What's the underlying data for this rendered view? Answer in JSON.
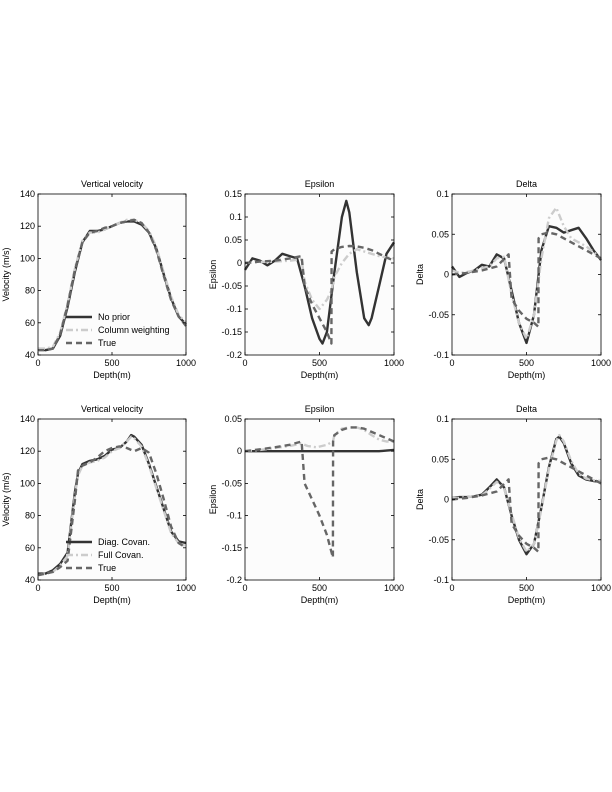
{
  "chart_data": [
    {
      "type": "line",
      "title": "Vertical velocity",
      "xlabel": "Depth(m)",
      "ylabel": "Velocity (m/s)",
      "xlim": [
        0,
        1000
      ],
      "ylim": [
        40,
        140
      ],
      "xticks": [
        0,
        500,
        1000
      ],
      "yticks": [
        40,
        60,
        80,
        100,
        120,
        140
      ],
      "ytick_labels": [
        "40",
        "60",
        "80",
        "100",
        "120",
        "140"
      ],
      "legend": "bottom-left",
      "series": [
        {
          "name": "No prior",
          "style": "solid",
          "color": "#333333",
          "x": [
            0,
            50,
            100,
            150,
            200,
            250,
            300,
            350,
            400,
            450,
            500,
            550,
            600,
            650,
            700,
            750,
            800,
            850,
            900,
            950,
            1000
          ],
          "y": [
            44,
            43,
            44,
            52,
            70,
            92,
            110,
            117,
            117,
            118,
            120,
            122,
            123,
            123,
            121,
            116,
            106,
            90,
            75,
            64,
            59
          ]
        },
        {
          "name": "Column weighting",
          "style": "dashdot",
          "color": "#cccccc",
          "x": [
            0,
            50,
            100,
            150,
            200,
            250,
            300,
            350,
            400,
            450,
            500,
            550,
            600,
            650,
            700,
            750,
            800,
            850,
            900,
            950,
            1000
          ],
          "y": [
            44,
            44,
            45,
            54,
            72,
            94,
            111,
            116,
            116,
            118,
            120,
            122,
            124,
            124,
            122,
            117,
            107,
            91,
            76,
            65,
            60
          ]
        },
        {
          "name": "True",
          "style": "dashed",
          "color": "#666666",
          "x": [
            0,
            50,
            100,
            150,
            200,
            250,
            300,
            350,
            400,
            450,
            500,
            550,
            600,
            650,
            700,
            750,
            800,
            850,
            900,
            950,
            1000
          ],
          "y": [
            43,
            43,
            44,
            53,
            71,
            93,
            110,
            116,
            117,
            119,
            120,
            122,
            123,
            124,
            122,
            116,
            105,
            89,
            74,
            64,
            58
          ]
        }
      ]
    },
    {
      "type": "line",
      "title": "Epsilon",
      "xlabel": "Depth(m)",
      "ylabel": "Epsilon",
      "xlim": [
        0,
        1000
      ],
      "ylim": [
        -0.2,
        0.15
      ],
      "xticks": [
        0,
        500,
        1000
      ],
      "yticks": [
        -0.2,
        -0.15,
        -0.1,
        -0.05,
        0,
        0.05,
        0.1,
        0.15
      ],
      "ytick_labels": [
        "-0.2",
        "-0.15",
        "-0.1",
        "-0.05",
        "0",
        "0.05",
        "0.1",
        "0.15"
      ],
      "series": [
        {
          "style": "solid",
          "color": "#333333",
          "x": [
            0,
            50,
            100,
            150,
            200,
            250,
            300,
            350,
            400,
            450,
            500,
            520,
            550,
            600,
            650,
            680,
            700,
            750,
            800,
            830,
            850,
            900,
            950,
            1000
          ],
          "y": [
            -0.015,
            0.01,
            0.005,
            -0.005,
            0.005,
            0.02,
            0.015,
            0.01,
            -0.05,
            -0.12,
            -0.165,
            -0.175,
            -0.15,
            -0.02,
            0.1,
            0.135,
            0.11,
            -0.02,
            -0.12,
            -0.135,
            -0.12,
            -0.05,
            0.02,
            0.045
          ]
        },
        {
          "style": "dashdot",
          "color": "#cccccc",
          "x": [
            0,
            100,
            200,
            300,
            380,
            400,
            450,
            500,
            550,
            580,
            600,
            650,
            700,
            750,
            800,
            850,
            900,
            950,
            1000
          ],
          "y": [
            0,
            0.002,
            0.003,
            0.005,
            0.008,
            -0.04,
            -0.08,
            -0.1,
            -0.08,
            -0.06,
            -0.03,
            0,
            0.02,
            0.03,
            0.025,
            0.02,
            0.015,
            0.012,
            0.01
          ]
        },
        {
          "style": "dashed",
          "color": "#666666",
          "x": [
            0,
            100,
            200,
            300,
            380,
            400,
            450,
            500,
            550,
            580,
            581,
            600,
            650,
            700,
            750,
            800,
            850,
            900,
            950,
            1000
          ],
          "y": [
            0,
            0.003,
            0.005,
            0.01,
            0.015,
            -0.05,
            -0.09,
            -0.12,
            -0.15,
            -0.175,
            0.025,
            0.03,
            0.035,
            0.037,
            0.036,
            0.033,
            0.028,
            0.02,
            0.012,
            0.005
          ]
        }
      ]
    },
    {
      "type": "line",
      "title": "Delta",
      "xlabel": "Depth(m)",
      "ylabel": "Delta",
      "xlim": [
        0,
        1000
      ],
      "ylim": [
        -0.1,
        0.1
      ],
      "xticks": [
        0,
        500,
        1000
      ],
      "yticks": [
        -0.1,
        -0.05,
        0,
        0.05,
        0.1
      ],
      "ytick_labels": [
        "-0.1",
        "-0.05",
        "0",
        "0.05",
        "0.1"
      ],
      "series": [
        {
          "style": "solid",
          "color": "#333333",
          "x": [
            0,
            50,
            100,
            150,
            200,
            250,
            300,
            350,
            400,
            450,
            500,
            550,
            600,
            650,
            700,
            750,
            800,
            850,
            900,
            950,
            1000
          ],
          "y": [
            0.01,
            -0.003,
            0.002,
            0.005,
            0.012,
            0.01,
            0.025,
            0.02,
            -0.02,
            -0.06,
            -0.085,
            -0.05,
            0.03,
            0.06,
            0.058,
            0.052,
            0.055,
            0.058,
            0.045,
            0.03,
            0.018
          ]
        },
        {
          "style": "dashdot",
          "color": "#cccccc",
          "x": [
            0,
            50,
            100,
            150,
            200,
            250,
            300,
            350,
            400,
            450,
            500,
            550,
            600,
            650,
            700,
            750,
            800,
            850,
            900,
            950,
            1000
          ],
          "y": [
            0.005,
            0.002,
            0.003,
            0.005,
            0.008,
            0.01,
            0.02,
            0.022,
            -0.025,
            -0.06,
            -0.08,
            -0.05,
            0.02,
            0.07,
            0.083,
            0.06,
            0.045,
            0.04,
            0.035,
            0.028,
            0.02
          ]
        },
        {
          "style": "dashed",
          "color": "#666666",
          "x": [
            0,
            100,
            200,
            300,
            380,
            400,
            450,
            500,
            550,
            580,
            581,
            600,
            650,
            700,
            750,
            800,
            850,
            900,
            950,
            1000
          ],
          "y": [
            0,
            0.002,
            0.005,
            0.01,
            0.025,
            -0.03,
            -0.045,
            -0.055,
            -0.06,
            -0.065,
            0.045,
            0.05,
            0.052,
            0.05,
            0.045,
            0.04,
            0.035,
            0.03,
            0.025,
            0.02
          ]
        }
      ]
    },
    {
      "type": "line",
      "title": "Vertical velocity",
      "xlabel": "Depth(m)",
      "ylabel": "Velocity (m/s)",
      "xlim": [
        0,
        1000
      ],
      "ylim": [
        40,
        140
      ],
      "xticks": [
        0,
        500,
        1000
      ],
      "yticks": [
        40,
        60,
        80,
        100,
        120,
        140
      ],
      "ytick_labels": [
        "40",
        "60",
        "80",
        "100",
        "120",
        "140"
      ],
      "legend": "bottom-left",
      "series": [
        {
          "name": "Diag. Covan.",
          "style": "solid",
          "color": "#333333",
          "x": [
            0,
            50,
            100,
            150,
            200,
            250,
            270,
            300,
            350,
            400,
            450,
            500,
            550,
            600,
            630,
            650,
            700,
            750,
            800,
            850,
            900,
            950,
            1000
          ],
          "y": [
            44,
            44,
            46,
            50,
            57,
            95,
            106,
            112,
            114,
            115,
            117,
            121,
            122,
            126,
            130,
            129,
            124,
            112,
            98,
            84,
            70,
            64,
            63
          ]
        },
        {
          "name": "Full Covan.",
          "style": "dashdot",
          "color": "#cccccc",
          "x": [
            0,
            50,
            100,
            150,
            200,
            250,
            270,
            300,
            350,
            400,
            450,
            500,
            550,
            600,
            630,
            650,
            700,
            750,
            800,
            850,
            900,
            950,
            1000
          ],
          "y": [
            43,
            44,
            45,
            49,
            55,
            93,
            105,
            111,
            113,
            114,
            116,
            120,
            122,
            126,
            129,
            128,
            123,
            111,
            97,
            83,
            69,
            63,
            61
          ]
        },
        {
          "name": "True",
          "style": "dashed",
          "color": "#666666",
          "x": [
            0,
            50,
            100,
            150,
            200,
            250,
            270,
            300,
            350,
            400,
            450,
            500,
            550,
            600,
            650,
            700,
            750,
            800,
            850,
            900,
            950,
            1000
          ],
          "y": [
            43,
            44,
            45,
            48,
            52,
            90,
            108,
            111,
            113,
            116,
            120,
            122,
            123,
            122,
            120,
            122,
            119,
            106,
            90,
            73,
            63,
            60
          ]
        }
      ]
    },
    {
      "type": "line",
      "title": "Epsilon",
      "xlabel": "Depth(m)",
      "ylabel": "Epsilon",
      "xlim": [
        0,
        1000
      ],
      "ylim": [
        -0.2,
        0.05
      ],
      "xticks": [
        0,
        500,
        1000
      ],
      "yticks": [
        -0.2,
        -0.15,
        -0.1,
        -0.05,
        0,
        0.05
      ],
      "ytick_labels": [
        "-0.2",
        "-0.15",
        "-0.1",
        "-0.05",
        "0",
        "0.05"
      ],
      "series": [
        {
          "style": "solid",
          "color": "#333333",
          "x": [
            0,
            100,
            200,
            300,
            400,
            500,
            600,
            700,
            800,
            900,
            950,
            1000
          ],
          "y": [
            0,
            0,
            0,
            0,
            0,
            0,
            0,
            0,
            0,
            0,
            0.001,
            0.002
          ]
        },
        {
          "style": "dashdot",
          "color": "#cccccc",
          "x": [
            0,
            100,
            200,
            300,
            380,
            420,
            480,
            550,
            590,
            600,
            650,
            700,
            750,
            800,
            850,
            900,
            950,
            1000
          ],
          "y": [
            0,
            0.002,
            0.005,
            0.008,
            0.012,
            0.008,
            0.006,
            0.01,
            0.015,
            0.025,
            0.035,
            0.037,
            0.037,
            0.033,
            0.025,
            0.018,
            0.015,
            0.015
          ]
        },
        {
          "style": "dashed",
          "color": "#666666",
          "x": [
            0,
            100,
            200,
            300,
            380,
            400,
            450,
            500,
            550,
            590,
            591,
            600,
            650,
            700,
            750,
            800,
            850,
            900,
            950,
            1000
          ],
          "y": [
            0,
            0.003,
            0.006,
            0.01,
            0.015,
            -0.05,
            -0.075,
            -0.1,
            -0.13,
            -0.165,
            0.015,
            0.025,
            0.033,
            0.037,
            0.037,
            0.035,
            0.03,
            0.025,
            0.02,
            0.015
          ]
        }
      ]
    },
    {
      "type": "line",
      "title": "Delta",
      "xlabel": "Depth(m)",
      "ylabel": "Delta",
      "xlim": [
        0,
        1000
      ],
      "ylim": [
        -0.1,
        0.1
      ],
      "xticks": [
        0,
        500,
        1000
      ],
      "yticks": [
        -0.1,
        -0.05,
        0,
        0.05,
        0.1
      ],
      "ytick_labels": [
        "-0.1",
        "-0.05",
        "0",
        "0.05",
        "0.1"
      ],
      "series": [
        {
          "style": "solid",
          "color": "#333333",
          "x": [
            0,
            50,
            100,
            150,
            200,
            250,
            300,
            350,
            400,
            450,
            500,
            550,
            600,
            650,
            700,
            720,
            750,
            800,
            850,
            900,
            950,
            1000
          ],
          "y": [
            0.002,
            0.003,
            0.003,
            0.004,
            0.006,
            0.015,
            0.025,
            0.015,
            -0.02,
            -0.05,
            -0.068,
            -0.055,
            -0.01,
            0.04,
            0.075,
            0.078,
            0.07,
            0.045,
            0.03,
            0.025,
            0.023,
            0.022
          ]
        },
        {
          "style": "dashdot",
          "color": "#cccccc",
          "x": [
            0,
            50,
            100,
            150,
            200,
            250,
            300,
            350,
            400,
            450,
            500,
            550,
            600,
            650,
            700,
            720,
            750,
            800,
            850,
            900,
            950,
            1000
          ],
          "y": [
            0.002,
            0.002,
            0.003,
            0.004,
            0.005,
            0.013,
            0.022,
            0.014,
            -0.018,
            -0.048,
            -0.065,
            -0.055,
            -0.012,
            0.038,
            0.073,
            0.08,
            0.072,
            0.048,
            0.032,
            0.026,
            0.024,
            0.023
          ]
        },
        {
          "style": "dashed",
          "color": "#666666",
          "x": [
            0,
            100,
            200,
            300,
            380,
            400,
            450,
            500,
            550,
            580,
            581,
            600,
            650,
            700,
            750,
            800,
            850,
            900,
            950,
            1000
          ],
          "y": [
            0,
            0.002,
            0.005,
            0.01,
            0.025,
            -0.03,
            -0.045,
            -0.055,
            -0.06,
            -0.065,
            0.045,
            0.05,
            0.052,
            0.05,
            0.045,
            0.04,
            0.035,
            0.03,
            0.025,
            0.02
          ]
        }
      ]
    }
  ]
}
